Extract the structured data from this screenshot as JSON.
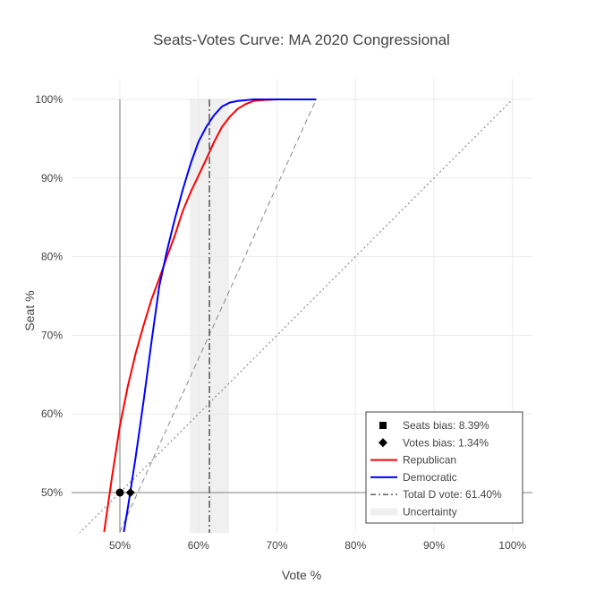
{
  "chart_data": {
    "type": "line",
    "title": "Seats-Votes Curve: MA 2020 Congressional",
    "xlabel": "Vote %",
    "ylabel": "Seat %",
    "xlim": [
      0.44,
      1.02
    ],
    "ylim": [
      0.45,
      1.0
    ],
    "x_ticks": [
      {
        "value": 0.5,
        "label": "50%"
      },
      {
        "value": 0.6,
        "label": "60%"
      },
      {
        "value": 0.7,
        "label": "70%"
      },
      {
        "value": 0.8,
        "label": "80%"
      },
      {
        "value": 0.9,
        "label": "90%"
      },
      {
        "value": 1.0,
        "label": "100%"
      }
    ],
    "y_ticks": [
      {
        "value": 0.5,
        "label": "50%"
      },
      {
        "value": 0.6,
        "label": "60%"
      },
      {
        "value": 0.7,
        "label": "70%"
      },
      {
        "value": 0.8,
        "label": "80%"
      },
      {
        "value": 0.9,
        "label": "90%"
      },
      {
        "value": 1.0,
        "label": "100%"
      }
    ],
    "grid": true,
    "legend_position": "bottom-right",
    "uncertainty_band": {
      "x0": 0.589,
      "x1": 0.639,
      "color": "#f0f0f0"
    },
    "total_d_vote": 0.614,
    "series": [
      {
        "name": "Republican",
        "color": "#ff0000",
        "points": [
          [
            0.48,
            0.45
          ],
          [
            0.49,
            0.52
          ],
          [
            0.5,
            0.585
          ],
          [
            0.51,
            0.635
          ],
          [
            0.52,
            0.677
          ],
          [
            0.53,
            0.712
          ],
          [
            0.54,
            0.745
          ],
          [
            0.55,
            0.772
          ],
          [
            0.56,
            0.8
          ],
          [
            0.57,
            0.827
          ],
          [
            0.58,
            0.858
          ],
          [
            0.59,
            0.882
          ],
          [
            0.6,
            0.903
          ],
          [
            0.61,
            0.924
          ],
          [
            0.62,
            0.946
          ],
          [
            0.63,
            0.965
          ],
          [
            0.64,
            0.978
          ],
          [
            0.65,
            0.988
          ],
          [
            0.66,
            0.994
          ],
          [
            0.67,
            0.998
          ],
          [
            0.68,
            0.999
          ],
          [
            0.7,
            1.0
          ],
          [
            0.75,
            1.0
          ]
        ]
      },
      {
        "name": "Democratic",
        "color": "#0000ff",
        "points": [
          [
            0.505,
            0.45
          ],
          [
            0.51,
            0.48
          ],
          [
            0.52,
            0.545
          ],
          [
            0.53,
            0.615
          ],
          [
            0.54,
            0.69
          ],
          [
            0.55,
            0.762
          ],
          [
            0.56,
            0.808
          ],
          [
            0.57,
            0.848
          ],
          [
            0.58,
            0.885
          ],
          [
            0.59,
            0.918
          ],
          [
            0.6,
            0.946
          ],
          [
            0.61,
            0.965
          ],
          [
            0.62,
            0.98
          ],
          [
            0.63,
            0.991
          ],
          [
            0.64,
            0.996
          ],
          [
            0.65,
            0.998
          ],
          [
            0.67,
            1.0
          ],
          [
            0.69,
            1.0
          ],
          [
            0.75,
            1.0
          ]
        ]
      }
    ],
    "reference_lines": {
      "dashed": {
        "x": [
          0.5,
          0.75
        ],
        "y": [
          0.45,
          1.0
        ]
      },
      "dotted": {
        "x": [
          0.44,
          1.0
        ],
        "y": [
          0.44,
          1.0
        ]
      }
    },
    "markers": [
      {
        "name": "Seats bias: 8.39%",
        "x": 0.5,
        "y": 0.5,
        "symbol": "circle"
      },
      {
        "name": "Votes bias: 1.34%",
        "x": 0.5134,
        "y": 0.5,
        "symbol": "diamond"
      }
    ],
    "legend": [
      {
        "label": "Seats bias: 8.39%",
        "symbol": "square"
      },
      {
        "label": "Votes bias: 1.34%",
        "symbol": "diamond"
      },
      {
        "label": "Republican",
        "symbol": "line",
        "color": "#ff0000"
      },
      {
        "label": "Democratic",
        "symbol": "line",
        "color": "#0000ff"
      },
      {
        "label": "Total D vote: 61.40%",
        "symbol": "dashdot"
      },
      {
        "label": "Uncertainty",
        "symbol": "band"
      }
    ]
  }
}
